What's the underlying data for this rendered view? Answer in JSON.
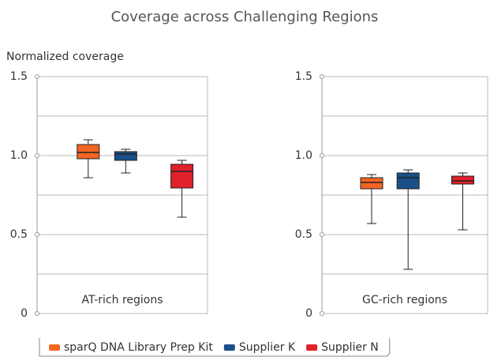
{
  "title": "Coverage across Challenging Regions",
  "chart_data": [
    {
      "type": "box",
      "ylabel": "Normalized coverage",
      "label": "AT-rich regions",
      "ylim": [
        0,
        1.5
      ],
      "yticks": [
        0,
        0.5,
        {
          "value": 1,
          "label": "1.0"
        },
        1.5
      ],
      "ygrid": [
        0.25,
        0.5,
        0.75,
        1,
        1.25
      ],
      "series": [
        {
          "name": "sparQ DNA Library Prep Kit",
          "color": "#f26522",
          "min": 0.86,
          "q1": 0.98,
          "median": 1.02,
          "q3": 1.07,
          "max": 1.1
        },
        {
          "name": "Supplier K",
          "color": "#1b4f8a",
          "min": 0.89,
          "q1": 0.97,
          "median": 1.01,
          "q3": 1.025,
          "max": 1.04
        },
        {
          "name": "Supplier N",
          "color": "#e0202a",
          "min": 0.61,
          "q1": 0.795,
          "median": 0.9,
          "q3": 0.945,
          "max": 0.97
        }
      ]
    },
    {
      "type": "box",
      "label": "GC-rich regions",
      "ylim": [
        0,
        1.5
      ],
      "yticks": [
        0,
        0.5,
        {
          "value": 1,
          "label": "1.0"
        },
        1.5
      ],
      "ygrid": [
        0.25,
        0.5,
        0.75,
        1,
        1.25
      ],
      "series": [
        {
          "name": "sparQ DNA Library Prep Kit",
          "color": "#f26522",
          "min": 0.57,
          "q1": 0.79,
          "median": 0.83,
          "q3": 0.86,
          "max": 0.88
        },
        {
          "name": "Supplier K",
          "color": "#1b4f8a",
          "min": 0.28,
          "q1": 0.79,
          "median": 0.86,
          "q3": 0.89,
          "max": 0.91
        },
        {
          "name": "Supplier N",
          "color": "#e0202a",
          "min": 0.53,
          "q1": 0.82,
          "median": 0.84,
          "q3": 0.87,
          "max": 0.89
        }
      ]
    }
  ]
}
